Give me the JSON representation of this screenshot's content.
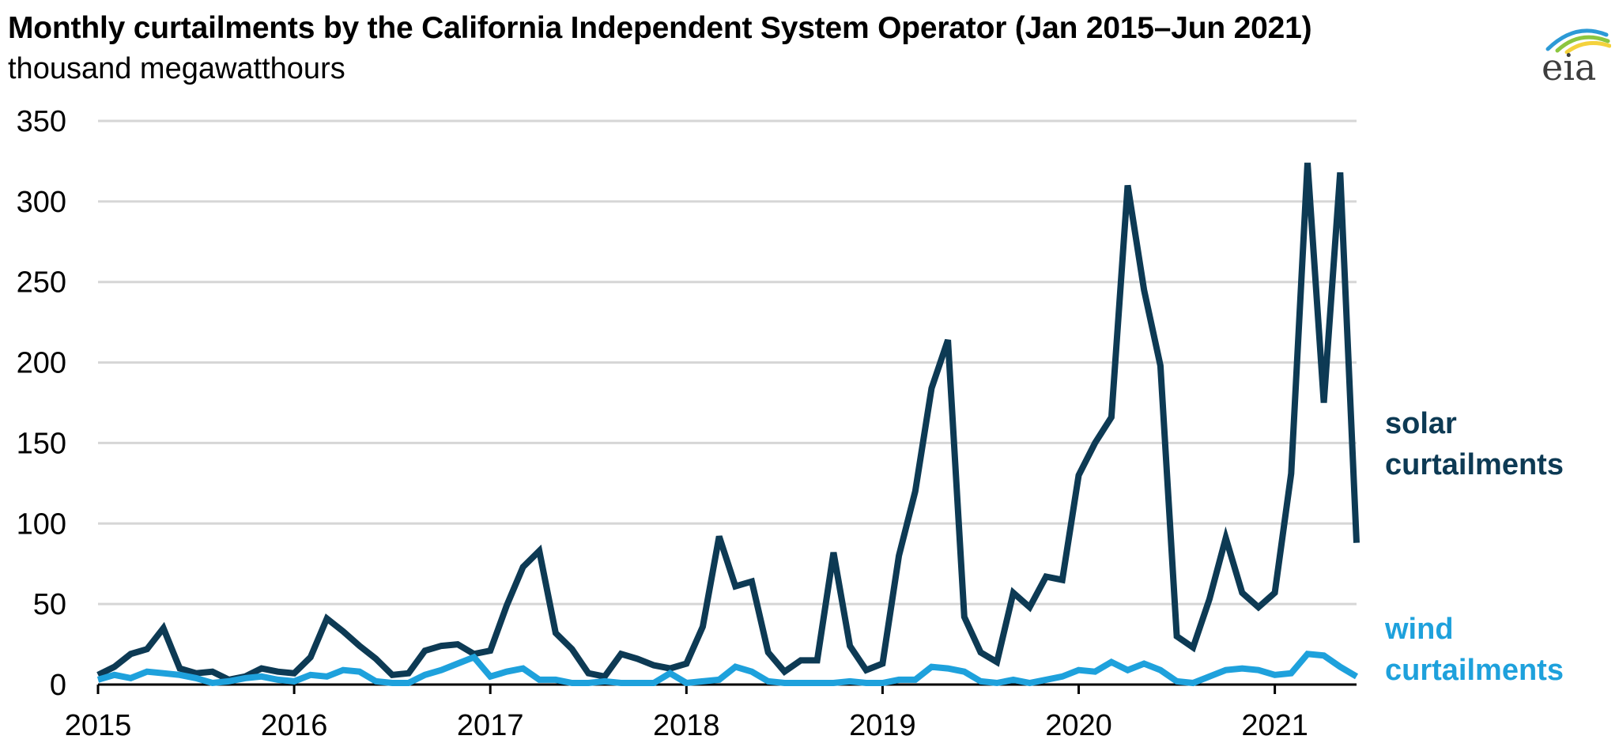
{
  "header": {
    "title": "Monthly curtailments by the California Independent System Operator (Jan 2015–Jun 2021)",
    "subtitle": "thousand megawatthours"
  },
  "logo": {
    "text": "eia",
    "colors": [
      "#2c9ad6",
      "#8cc63f",
      "#f4d23c"
    ]
  },
  "colors": {
    "solar": "#0d3a54",
    "wind": "#1ea1dc",
    "grid": "#d6d6d6",
    "axis": "#000000"
  },
  "chart_data": {
    "type": "line",
    "title": "Monthly curtailments by the California Independent System Operator (Jan 2015–Jun 2021)",
    "ylabel": "thousand megawatthours",
    "xlabel": "",
    "ylim": [
      0,
      350
    ],
    "yticks": [
      0,
      50,
      100,
      150,
      200,
      250,
      300,
      350
    ],
    "xticks": [
      "2015",
      "2016",
      "2017",
      "2018",
      "2019",
      "2020",
      "2021"
    ],
    "x_start": "2015-01",
    "x_end": "2021-06",
    "grid": true,
    "series": [
      {
        "name": "solar curtailments",
        "label_lines": [
          "solar",
          "curtailments"
        ],
        "values": [
          6,
          11,
          19,
          22,
          35,
          10,
          7,
          8,
          3,
          5,
          10,
          8,
          7,
          17,
          41,
          33,
          24,
          16,
          6,
          7,
          21,
          24,
          25,
          19,
          21,
          49,
          73,
          83,
          32,
          22,
          7,
          5,
          19,
          16,
          12,
          10,
          13,
          36,
          92,
          61,
          64,
          20,
          8,
          15,
          15,
          82,
          24,
          9,
          13,
          80,
          120,
          184,
          214,
          42,
          20,
          14,
          57,
          48,
          67,
          65,
          130,
          150,
          166,
          310,
          245,
          198,
          30,
          23,
          53,
          91,
          57,
          48,
          57,
          131,
          324,
          175,
          318,
          88
        ]
      },
      {
        "name": "wind curtailments",
        "label_lines": [
          "wind",
          "curtailments"
        ],
        "values": [
          3,
          6,
          4,
          8,
          7,
          6,
          4,
          1,
          2,
          4,
          5,
          3,
          2,
          6,
          5,
          9,
          8,
          2,
          1,
          1,
          6,
          9,
          13,
          17,
          5,
          8,
          10,
          3,
          3,
          1,
          1,
          2,
          1,
          1,
          1,
          7,
          1,
          2,
          3,
          11,
          8,
          2,
          1,
          1,
          1,
          1,
          2,
          1,
          1,
          3,
          3,
          11,
          10,
          8,
          2,
          1,
          3,
          1,
          3,
          5,
          9,
          8,
          14,
          9,
          13,
          9,
          2,
          1,
          5,
          9,
          10,
          9,
          6,
          7,
          19,
          18,
          11,
          5
        ]
      }
    ]
  }
}
